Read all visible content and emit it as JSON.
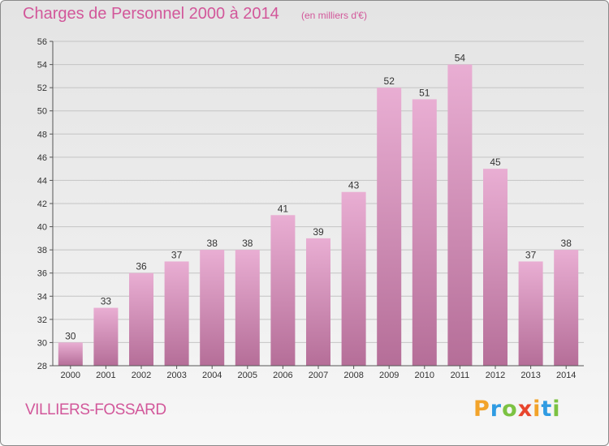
{
  "header": {
    "title": "Charges de Personnel 2000 à 2014",
    "subtitle": "(en milliers d'€)"
  },
  "footer": {
    "place": "VILLIERS-FOSSARD",
    "logo_letters": [
      "P",
      "r",
      "o",
      "x",
      "i",
      "t",
      "i"
    ],
    "logo_colors": [
      "#f2a32a",
      "#2f9be2",
      "#7cc242",
      "#e8452d",
      "#f2a32a",
      "#2f9be2",
      "#7cc242"
    ]
  },
  "colors": {
    "title": "#d2579a",
    "bar_top": "#e9aed3",
    "bar_bottom": "#b56e98",
    "grid": "#c4c4c4"
  },
  "chart_data": {
    "type": "bar",
    "title": "Charges de Personnel 2000 à 2014",
    "subtitle": "(en milliers d'€)",
    "categories": [
      "2000",
      "2001",
      "2002",
      "2003",
      "2004",
      "2005",
      "2006",
      "2007",
      "2008",
      "2009",
      "2010",
      "2011",
      "2012",
      "2013",
      "2014"
    ],
    "values": [
      30,
      33,
      36,
      37,
      38,
      38,
      41,
      39,
      43,
      52,
      51,
      54,
      45,
      37,
      38
    ],
    "ylim": [
      28,
      56
    ],
    "yticks": [
      28,
      30,
      32,
      34,
      36,
      38,
      40,
      42,
      44,
      46,
      48,
      50,
      52,
      54,
      56
    ],
    "xlabel": "",
    "ylabel": "",
    "grid": true,
    "data_labels": true
  }
}
